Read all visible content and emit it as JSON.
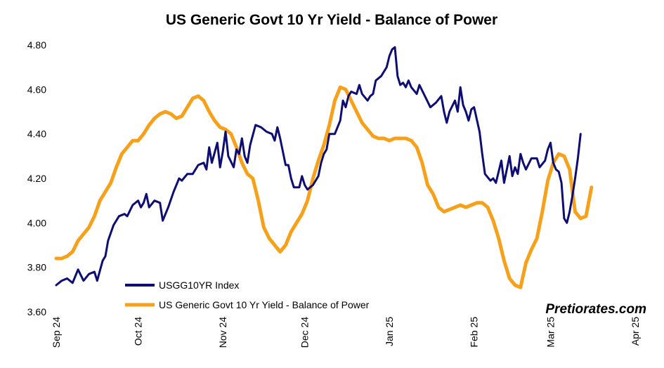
{
  "chart_data": {
    "type": "line",
    "title": "US Generic Govt 10 Yr Yield - Balance of Power",
    "xlabel": "",
    "ylabel": "",
    "ylim": [
      3.6,
      4.8
    ],
    "yticks": [
      "3.60",
      "3.80",
      "4.00",
      "4.20",
      "4.40",
      "4.60",
      "4.80"
    ],
    "xlim": [
      "2024-09-01",
      "2025-04-01"
    ],
    "xticks": [
      {
        "label": "Sep 24",
        "date": "2024-09-01"
      },
      {
        "label": "Oct 24",
        "date": "2024-10-01"
      },
      {
        "label": "Nov 24",
        "date": "2024-11-01"
      },
      {
        "label": "Dec 24",
        "date": "2024-12-01"
      },
      {
        "label": "Jan 25",
        "date": "2025-01-01"
      },
      {
        "label": "Feb 25",
        "date": "2025-02-01"
      },
      {
        "label": "Mar 25",
        "date": "2025-03-01"
      },
      {
        "label": "Apr 25",
        "date": "2025-04-01"
      }
    ],
    "grid": false,
    "legend_position": "bottom-left",
    "watermark": "Pretiorates.com",
    "series": [
      {
        "name": "USGG10YR Index",
        "color": "#0d0d73",
        "points": [
          [
            "2024-09-01",
            3.72
          ],
          [
            "2024-09-03",
            3.74
          ],
          [
            "2024-09-05",
            3.75
          ],
          [
            "2024-09-07",
            3.73
          ],
          [
            "2024-09-09",
            3.79
          ],
          [
            "2024-09-11",
            3.74
          ],
          [
            "2024-09-13",
            3.77
          ],
          [
            "2024-09-15",
            3.78
          ],
          [
            "2024-09-16",
            3.74
          ],
          [
            "2024-09-18",
            3.83
          ],
          [
            "2024-09-19",
            3.85
          ],
          [
            "2024-09-20",
            3.92
          ],
          [
            "2024-09-22",
            3.99
          ],
          [
            "2024-09-24",
            4.03
          ],
          [
            "2024-09-26",
            4.04
          ],
          [
            "2024-09-27",
            4.03
          ],
          [
            "2024-09-29",
            4.08
          ],
          [
            "2024-10-01",
            4.1
          ],
          [
            "2024-10-02",
            4.07
          ],
          [
            "2024-10-03",
            4.09
          ],
          [
            "2024-10-04",
            4.13
          ],
          [
            "2024-10-05",
            4.07
          ],
          [
            "2024-10-07",
            4.1
          ],
          [
            "2024-10-09",
            4.09
          ],
          [
            "2024-10-10",
            4.01
          ],
          [
            "2024-10-12",
            4.07
          ],
          [
            "2024-10-14",
            4.14
          ],
          [
            "2024-10-16",
            4.2
          ],
          [
            "2024-10-17",
            4.19
          ],
          [
            "2024-10-19",
            4.22
          ],
          [
            "2024-10-21",
            4.22
          ],
          [
            "2024-10-23",
            4.26
          ],
          [
            "2024-10-25",
            4.27
          ],
          [
            "2024-10-26",
            4.24
          ],
          [
            "2024-10-27",
            4.34
          ],
          [
            "2024-10-28",
            4.27
          ],
          [
            "2024-10-30",
            4.36
          ],
          [
            "2024-10-31",
            4.25
          ],
          [
            "2024-11-01",
            4.32
          ],
          [
            "2024-11-02",
            4.41
          ],
          [
            "2024-11-03",
            4.3
          ],
          [
            "2024-11-05",
            4.25
          ],
          [
            "2024-11-06",
            4.33
          ],
          [
            "2024-11-07",
            4.31
          ],
          [
            "2024-11-08",
            4.38
          ],
          [
            "2024-11-09",
            4.3
          ],
          [
            "2024-11-10",
            4.27
          ],
          [
            "2024-11-11",
            4.35
          ],
          [
            "2024-11-13",
            4.44
          ],
          [
            "2024-11-15",
            4.43
          ],
          [
            "2024-11-17",
            4.41
          ],
          [
            "2024-11-19",
            4.4
          ],
          [
            "2024-11-20",
            4.37
          ],
          [
            "2024-11-21",
            4.43
          ],
          [
            "2024-11-22",
            4.38
          ],
          [
            "2024-11-24",
            4.26
          ],
          [
            "2024-11-25",
            4.26
          ],
          [
            "2024-11-26",
            4.2
          ],
          [
            "2024-11-27",
            4.16
          ],
          [
            "2024-11-29",
            4.16
          ],
          [
            "2024-11-30",
            4.21
          ],
          [
            "2024-12-01",
            4.17
          ],
          [
            "2024-12-02",
            4.15
          ],
          [
            "2024-12-04",
            4.17
          ],
          [
            "2024-12-06",
            4.21
          ],
          [
            "2024-12-07",
            4.27
          ],
          [
            "2024-12-08",
            4.31
          ],
          [
            "2024-12-09",
            4.33
          ],
          [
            "2024-12-10",
            4.4
          ],
          [
            "2024-12-12",
            4.4
          ],
          [
            "2024-12-14",
            4.46
          ],
          [
            "2024-12-15",
            4.55
          ],
          [
            "2024-12-16",
            4.52
          ],
          [
            "2024-12-17",
            4.57
          ],
          [
            "2024-12-18",
            4.59
          ],
          [
            "2024-12-20",
            4.58
          ],
          [
            "2024-12-21",
            4.62
          ],
          [
            "2024-12-22",
            4.58
          ],
          [
            "2024-12-24",
            4.55
          ],
          [
            "2024-12-25",
            4.57
          ],
          [
            "2024-12-26",
            4.58
          ],
          [
            "2024-12-27",
            4.64
          ],
          [
            "2024-12-29",
            4.66
          ],
          [
            "2024-12-30",
            4.68
          ],
          [
            "2024-12-31",
            4.7
          ],
          [
            "2025-01-01",
            4.75
          ],
          [
            "2025-01-02",
            4.78
          ],
          [
            "2025-01-03",
            4.79
          ],
          [
            "2025-01-04",
            4.66
          ],
          [
            "2025-01-05",
            4.62
          ],
          [
            "2025-01-06",
            4.63
          ],
          [
            "2025-01-07",
            4.61
          ],
          [
            "2025-01-08",
            4.64
          ],
          [
            "2025-01-09",
            4.61
          ],
          [
            "2025-01-11",
            4.58
          ],
          [
            "2025-01-12",
            4.62
          ],
          [
            "2025-01-14",
            4.57
          ],
          [
            "2025-01-16",
            4.52
          ],
          [
            "2025-01-18",
            4.54
          ],
          [
            "2025-01-20",
            4.57
          ],
          [
            "2025-01-21",
            4.5
          ],
          [
            "2025-01-22",
            4.45
          ],
          [
            "2025-01-23",
            4.5
          ],
          [
            "2025-01-25",
            4.55
          ],
          [
            "2025-01-26",
            4.5
          ],
          [
            "2025-01-27",
            4.61
          ],
          [
            "2025-01-28",
            4.53
          ],
          [
            "2025-01-29",
            4.5
          ],
          [
            "2025-01-30",
            4.46
          ],
          [
            "2025-01-31",
            4.51
          ],
          [
            "2025-02-01",
            4.52
          ],
          [
            "2025-02-03",
            4.41
          ],
          [
            "2025-02-04",
            4.31
          ],
          [
            "2025-02-05",
            4.22
          ],
          [
            "2025-02-07",
            4.19
          ],
          [
            "2025-02-08",
            4.2
          ],
          [
            "2025-02-09",
            4.18
          ],
          [
            "2025-02-11",
            4.28
          ],
          [
            "2025-02-12",
            4.18
          ],
          [
            "2025-02-14",
            4.3
          ],
          [
            "2025-02-15",
            4.21
          ],
          [
            "2025-02-16",
            4.25
          ],
          [
            "2025-02-17",
            4.22
          ],
          [
            "2025-02-18",
            4.31
          ],
          [
            "2025-02-19",
            4.27
          ],
          [
            "2025-02-20",
            4.24
          ],
          [
            "2025-02-22",
            4.29
          ],
          [
            "2025-02-24",
            4.29
          ],
          [
            "2025-02-25",
            4.25
          ],
          [
            "2025-02-27",
            4.28
          ],
          [
            "2025-02-28",
            4.33
          ],
          [
            "2025-03-01",
            4.36
          ],
          [
            "2025-03-02",
            4.27
          ],
          [
            "2025-03-03",
            4.24
          ],
          [
            "2025-03-04",
            4.23
          ],
          [
            "2025-03-05",
            4.18
          ],
          [
            "2025-03-06",
            4.02
          ],
          [
            "2025-03-07",
            4.0
          ],
          [
            "2025-03-08",
            4.05
          ],
          [
            "2025-03-09",
            4.12
          ],
          [
            "2025-03-10",
            4.2
          ],
          [
            "2025-03-11",
            4.29
          ],
          [
            "2025-03-12",
            4.4
          ]
        ]
      },
      {
        "name": "US Generic Govt 10 Yr Yield - Balance of Power",
        "color": "#f7a11a",
        "points": [
          [
            "2024-09-01",
            3.84
          ],
          [
            "2024-09-03",
            3.84
          ],
          [
            "2024-09-05",
            3.85
          ],
          [
            "2024-09-07",
            3.87
          ],
          [
            "2024-09-09",
            3.92
          ],
          [
            "2024-09-11",
            3.95
          ],
          [
            "2024-09-13",
            3.98
          ],
          [
            "2024-09-15",
            4.03
          ],
          [
            "2024-09-17",
            4.1
          ],
          [
            "2024-09-19",
            4.14
          ],
          [
            "2024-09-21",
            4.18
          ],
          [
            "2024-09-23",
            4.25
          ],
          [
            "2024-09-25",
            4.31
          ],
          [
            "2024-09-27",
            4.34
          ],
          [
            "2024-09-29",
            4.37
          ],
          [
            "2024-10-01",
            4.37
          ],
          [
            "2024-10-03",
            4.4
          ],
          [
            "2024-10-05",
            4.44
          ],
          [
            "2024-10-07",
            4.47
          ],
          [
            "2024-10-09",
            4.49
          ],
          [
            "2024-10-11",
            4.5
          ],
          [
            "2024-10-13",
            4.49
          ],
          [
            "2024-10-15",
            4.47
          ],
          [
            "2024-10-17",
            4.48
          ],
          [
            "2024-10-19",
            4.52
          ],
          [
            "2024-10-21",
            4.56
          ],
          [
            "2024-10-23",
            4.57
          ],
          [
            "2024-10-25",
            4.55
          ],
          [
            "2024-10-27",
            4.5
          ],
          [
            "2024-10-29",
            4.46
          ],
          [
            "2024-10-31",
            4.43
          ],
          [
            "2024-11-02",
            4.42
          ],
          [
            "2024-11-04",
            4.4
          ],
          [
            "2024-11-06",
            4.34
          ],
          [
            "2024-11-08",
            4.27
          ],
          [
            "2024-11-10",
            4.22
          ],
          [
            "2024-11-12",
            4.2
          ],
          [
            "2024-11-14",
            4.1
          ],
          [
            "2024-11-16",
            3.98
          ],
          [
            "2024-11-18",
            3.93
          ],
          [
            "2024-11-20",
            3.9
          ],
          [
            "2024-11-22",
            3.87
          ],
          [
            "2024-11-24",
            3.9
          ],
          [
            "2024-11-26",
            3.96
          ],
          [
            "2024-11-28",
            4.0
          ],
          [
            "2024-11-30",
            4.04
          ],
          [
            "2024-12-02",
            4.1
          ],
          [
            "2024-12-04",
            4.2
          ],
          [
            "2024-12-06",
            4.28
          ],
          [
            "2024-12-08",
            4.35
          ],
          [
            "2024-12-10",
            4.44
          ],
          [
            "2024-12-12",
            4.55
          ],
          [
            "2024-12-14",
            4.61
          ],
          [
            "2024-12-16",
            4.6
          ],
          [
            "2024-12-18",
            4.55
          ],
          [
            "2024-12-20",
            4.5
          ],
          [
            "2024-12-22",
            4.45
          ],
          [
            "2024-12-24",
            4.42
          ],
          [
            "2024-12-26",
            4.39
          ],
          [
            "2024-12-28",
            4.38
          ],
          [
            "2024-12-30",
            4.38
          ],
          [
            "2025-01-01",
            4.37
          ],
          [
            "2025-01-03",
            4.38
          ],
          [
            "2025-01-05",
            4.38
          ],
          [
            "2025-01-07",
            4.38
          ],
          [
            "2025-01-09",
            4.37
          ],
          [
            "2025-01-11",
            4.34
          ],
          [
            "2025-01-13",
            4.27
          ],
          [
            "2025-01-15",
            4.17
          ],
          [
            "2025-01-17",
            4.13
          ],
          [
            "2025-01-19",
            4.07
          ],
          [
            "2025-01-21",
            4.05
          ],
          [
            "2025-01-23",
            4.06
          ],
          [
            "2025-01-25",
            4.07
          ],
          [
            "2025-01-27",
            4.08
          ],
          [
            "2025-01-29",
            4.07
          ],
          [
            "2025-01-31",
            4.08
          ],
          [
            "2025-02-02",
            4.09
          ],
          [
            "2025-02-04",
            4.09
          ],
          [
            "2025-02-06",
            4.07
          ],
          [
            "2025-02-08",
            4.01
          ],
          [
            "2025-02-10",
            3.93
          ],
          [
            "2025-02-12",
            3.83
          ],
          [
            "2025-02-14",
            3.75
          ],
          [
            "2025-02-16",
            3.72
          ],
          [
            "2025-02-18",
            3.71
          ],
          [
            "2025-02-20",
            3.82
          ],
          [
            "2025-02-22",
            3.88
          ],
          [
            "2025-02-24",
            3.93
          ],
          [
            "2025-02-26",
            4.05
          ],
          [
            "2025-02-28",
            4.19
          ],
          [
            "2025-03-02",
            4.27
          ],
          [
            "2025-03-04",
            4.31
          ],
          [
            "2025-03-06",
            4.3
          ],
          [
            "2025-03-08",
            4.24
          ],
          [
            "2025-03-10",
            4.05
          ],
          [
            "2025-03-12",
            4.02
          ],
          [
            "2025-03-14",
            4.03
          ],
          [
            "2025-03-16",
            4.16
          ]
        ]
      }
    ]
  }
}
